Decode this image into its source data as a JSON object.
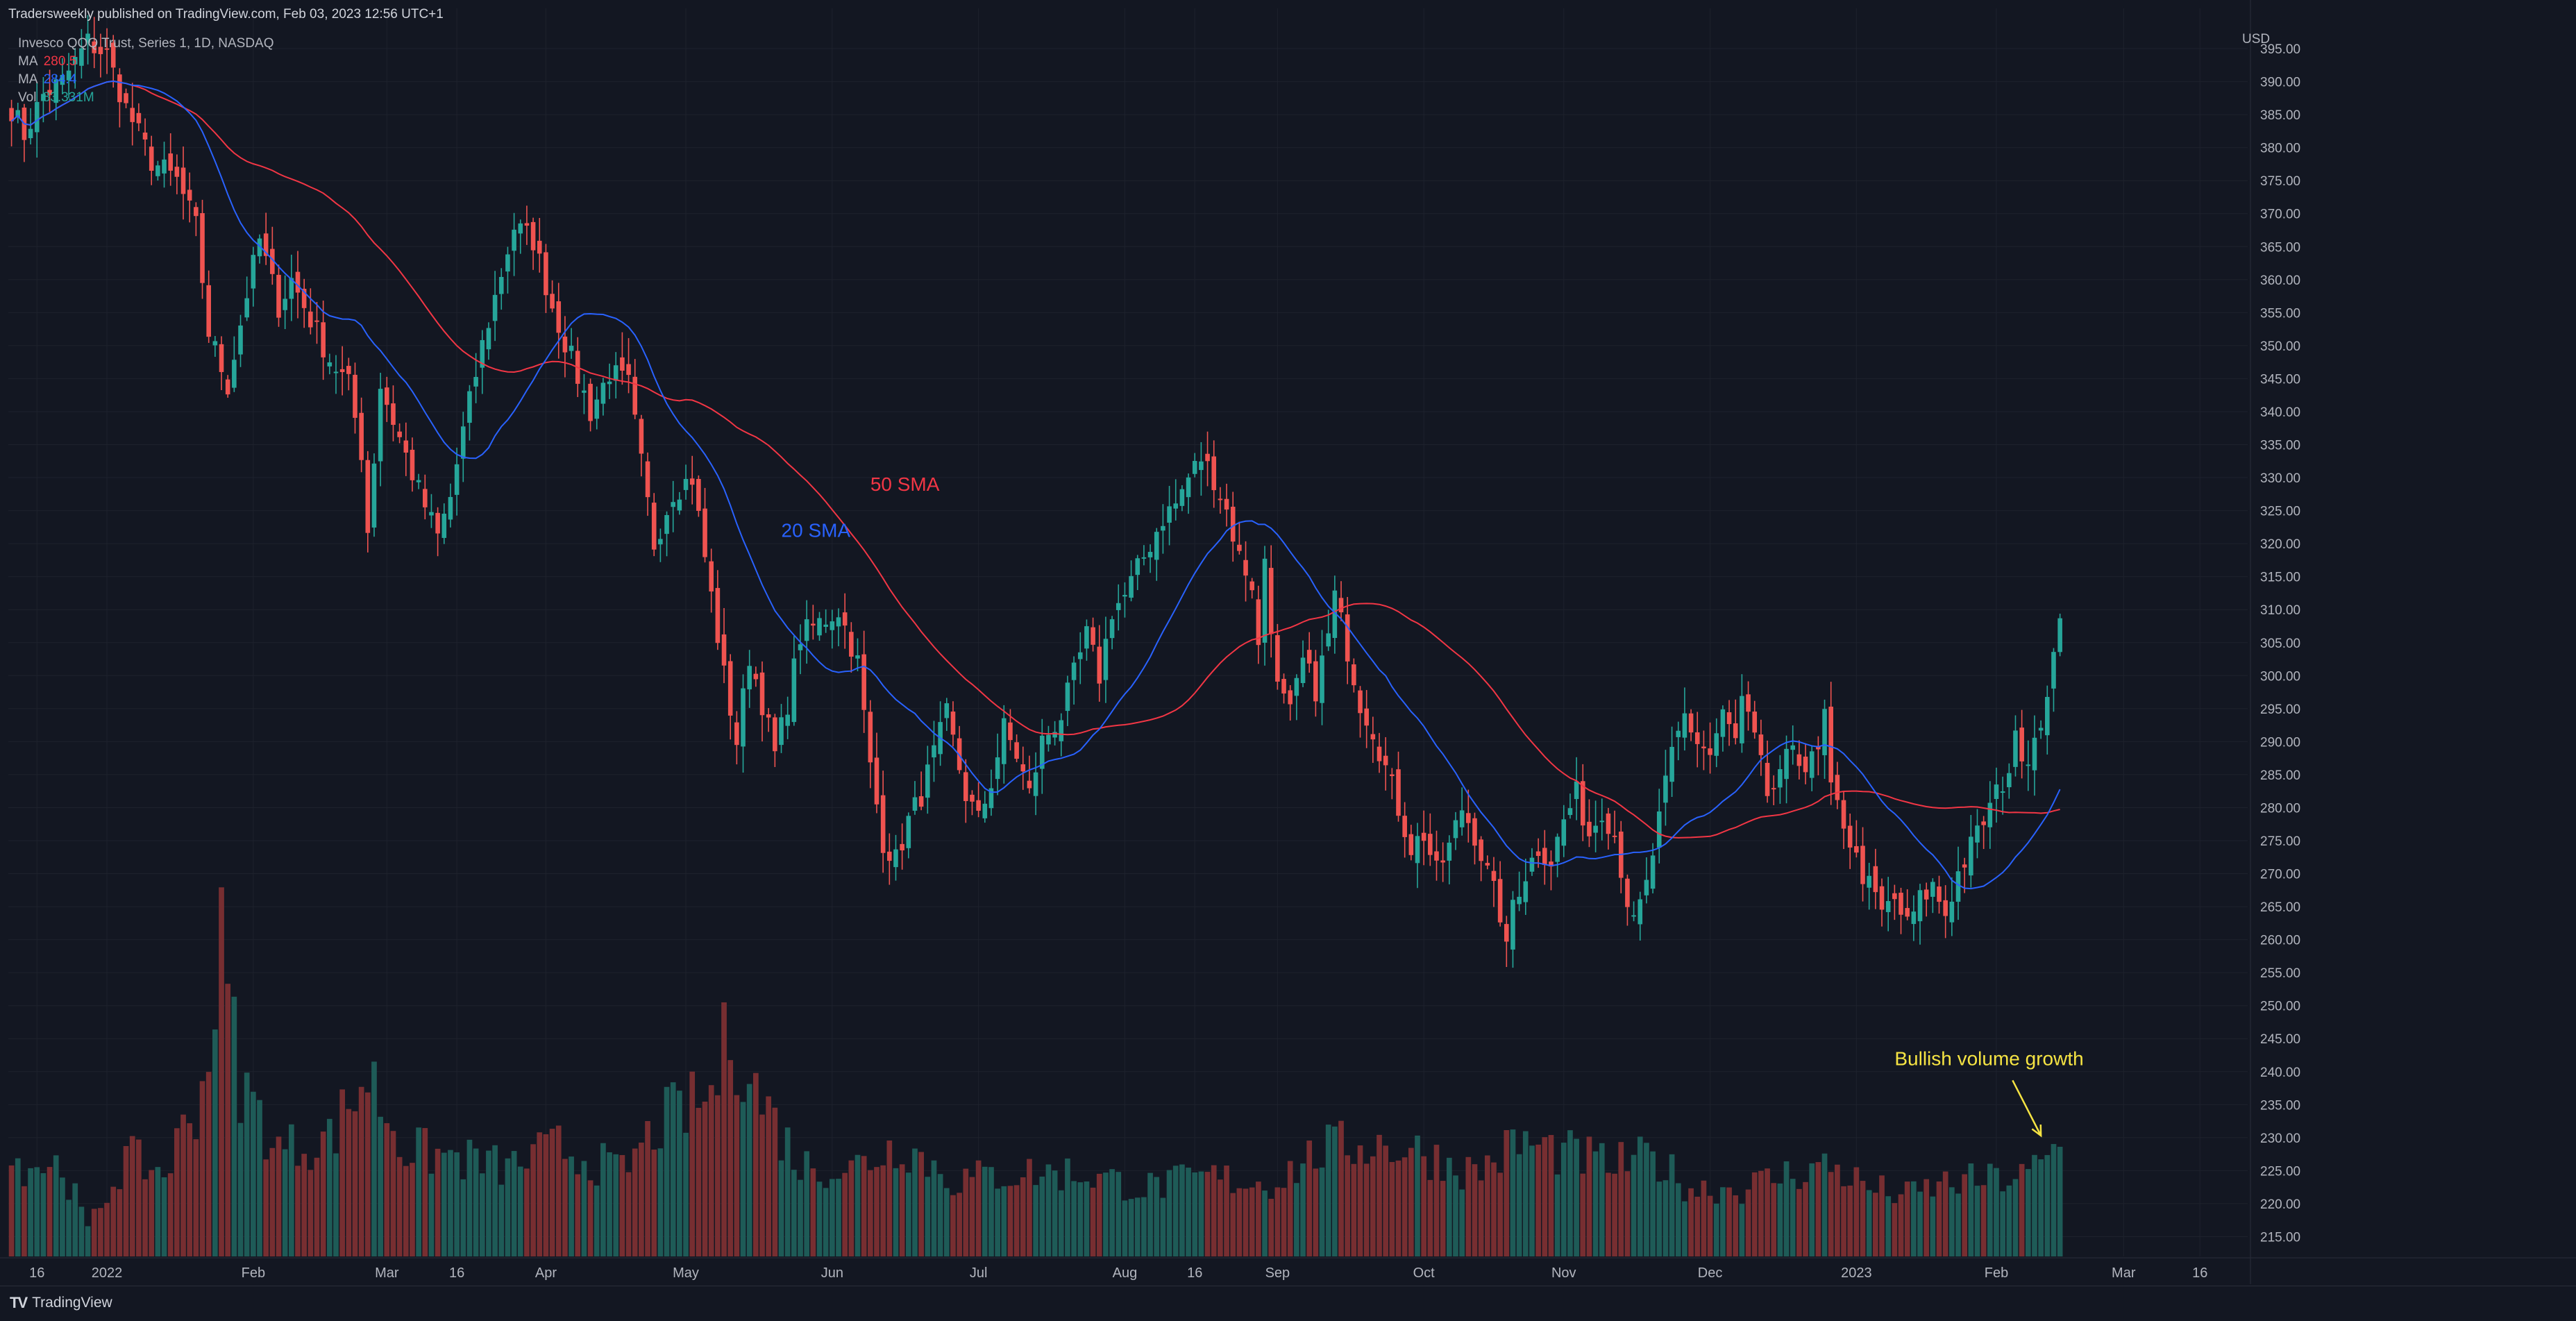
{
  "header": {
    "publisher": "Tradersweekly published on TradingView.com, Feb 03, 2023 12:56 UTC+1"
  },
  "legend": [
    {
      "label": "Invesco QQQ Trust, Series 1, 1D, NASDAQ",
      "value": "",
      "color": "#d1d4dc"
    },
    {
      "label": "MA",
      "value": "280.5",
      "color": "#f23645"
    },
    {
      "label": "MA",
      "value": "284.4",
      "color": "#2962ff"
    },
    {
      "label": "Vol",
      "value": "83.331M",
      "color": "#26a69a"
    }
  ],
  "brand": {
    "name": "TradingView",
    "logo_text": "TV"
  },
  "colors": {
    "background": "#131722",
    "grid": "#1e222d",
    "up": "#26a69a",
    "down": "#ef5350",
    "ma20": "#2962ff",
    "ma50": "#f23645",
    "annotation_yellow": "#f6e443",
    "axis_text": "#b2b5be"
  },
  "chart_data": {
    "type": "candlestick",
    "y_axis": {
      "currency": "USD",
      "range": [
        212,
        399
      ],
      "ticks": [
        "395.00",
        "390.00",
        "385.00",
        "380.00",
        "375.00",
        "370.00",
        "365.00",
        "360.00",
        "355.00",
        "350.00",
        "345.00",
        "340.00",
        "335.00",
        "330.00",
        "325.00",
        "320.00",
        "315.00",
        "310.00",
        "305.00",
        "300.00",
        "295.00",
        "290.00",
        "285.00",
        "280.00",
        "275.00",
        "270.00",
        "265.00",
        "260.00",
        "255.00",
        "250.00",
        "245.00",
        "240.00",
        "235.00",
        "230.00",
        "225.00",
        "220.00",
        "215.00"
      ]
    },
    "x_axis": {
      "ticks": [
        {
          "label": "16",
          "bar": 4
        },
        {
          "label": "2022",
          "bar": 15
        },
        {
          "label": "Feb",
          "bar": 38
        },
        {
          "label": "Mar",
          "bar": 59
        },
        {
          "label": "16",
          "bar": 70
        },
        {
          "label": "Apr",
          "bar": 84
        },
        {
          "label": "May",
          "bar": 106
        },
        {
          "label": "Jun",
          "bar": 129
        },
        {
          "label": "Jul",
          "bar": 152
        },
        {
          "label": "Aug",
          "bar": 175
        },
        {
          "label": "16",
          "bar": 186
        },
        {
          "label": "Sep",
          "bar": 199
        },
        {
          "label": "Oct",
          "bar": 222
        },
        {
          "label": "Nov",
          "bar": 244
        },
        {
          "label": "Dec",
          "bar": 267
        },
        {
          "label": "2023",
          "bar": 290
        },
        {
          "label": "Feb",
          "bar": 312
        },
        {
          "label": "Mar",
          "bar": 332
        },
        {
          "label": "16",
          "bar": 344
        }
      ]
    },
    "annotations": [
      {
        "text": "50 SMA",
        "bar": 135,
        "price": 328,
        "color": "#f23645"
      },
      {
        "text": "20 SMA",
        "bar": 121,
        "price": 321,
        "color": "#2962ff"
      },
      {
        "text": "Bullish volume growth",
        "bar": 296,
        "price": 241,
        "color": "#f6e443"
      }
    ],
    "keyframes": [
      {
        "bar": 0,
        "price": 386
      },
      {
        "bar": 2,
        "price": 382
      },
      {
        "bar": 5,
        "price": 388
      },
      {
        "bar": 8,
        "price": 390
      },
      {
        "bar": 12,
        "price": 396
      },
      {
        "bar": 15,
        "price": 394
      },
      {
        "bar": 18,
        "price": 386
      },
      {
        "bar": 22,
        "price": 378
      },
      {
        "bar": 26,
        "price": 375
      },
      {
        "bar": 29,
        "price": 368
      },
      {
        "bar": 31,
        "price": 352
      },
      {
        "bar": 34,
        "price": 344
      },
      {
        "bar": 37,
        "price": 358
      },
      {
        "bar": 39,
        "price": 366
      },
      {
        "bar": 42,
        "price": 356
      },
      {
        "bar": 44,
        "price": 360
      },
      {
        "bar": 47,
        "price": 354
      },
      {
        "bar": 50,
        "price": 348
      },
      {
        "bar": 53,
        "price": 344
      },
      {
        "bar": 55,
        "price": 334
      },
      {
        "bar": 56,
        "price": 322
      },
      {
        "bar": 58,
        "price": 344
      },
      {
        "bar": 61,
        "price": 336
      },
      {
        "bar": 64,
        "price": 328
      },
      {
        "bar": 67,
        "price": 321
      },
      {
        "bar": 69,
        "price": 327
      },
      {
        "bar": 71,
        "price": 337
      },
      {
        "bar": 74,
        "price": 350
      },
      {
        "bar": 77,
        "price": 361
      },
      {
        "bar": 79,
        "price": 368
      },
      {
        "bar": 82,
        "price": 366
      },
      {
        "bar": 85,
        "price": 356
      },
      {
        "bar": 88,
        "price": 348
      },
      {
        "bar": 91,
        "price": 340
      },
      {
        "bar": 94,
        "price": 346
      },
      {
        "bar": 97,
        "price": 344
      },
      {
        "bar": 99,
        "price": 332
      },
      {
        "bar": 101,
        "price": 320
      },
      {
        "bar": 104,
        "price": 328
      },
      {
        "bar": 107,
        "price": 330
      },
      {
        "bar": 109,
        "price": 318
      },
      {
        "bar": 112,
        "price": 300
      },
      {
        "bar": 114,
        "price": 290
      },
      {
        "bar": 116,
        "price": 303
      },
      {
        "bar": 118,
        "price": 296
      },
      {
        "bar": 120,
        "price": 288
      },
      {
        "bar": 122,
        "price": 296
      },
      {
        "bar": 124,
        "price": 306
      },
      {
        "bar": 127,
        "price": 308
      },
      {
        "bar": 130,
        "price": 310
      },
      {
        "bar": 133,
        "price": 302
      },
      {
        "bar": 135,
        "price": 286
      },
      {
        "bar": 137,
        "price": 275
      },
      {
        "bar": 139,
        "price": 272
      },
      {
        "bar": 141,
        "price": 278
      },
      {
        "bar": 143,
        "price": 282
      },
      {
        "bar": 145,
        "price": 288
      },
      {
        "bar": 147,
        "price": 294
      },
      {
        "bar": 150,
        "price": 282
      },
      {
        "bar": 152,
        "price": 278
      },
      {
        "bar": 154,
        "price": 284
      },
      {
        "bar": 156,
        "price": 292
      },
      {
        "bar": 158,
        "price": 288
      },
      {
        "bar": 160,
        "price": 282
      },
      {
        "bar": 162,
        "price": 290
      },
      {
        "bar": 165,
        "price": 294
      },
      {
        "bar": 167,
        "price": 300
      },
      {
        "bar": 169,
        "price": 306
      },
      {
        "bar": 171,
        "price": 300
      },
      {
        "bar": 173,
        "price": 310
      },
      {
        "bar": 175,
        "price": 312
      },
      {
        "bar": 177,
        "price": 316
      },
      {
        "bar": 179,
        "price": 320
      },
      {
        "bar": 181,
        "price": 324
      },
      {
        "bar": 183,
        "price": 326
      },
      {
        "bar": 185,
        "price": 330
      },
      {
        "bar": 187,
        "price": 333
      },
      {
        "bar": 189,
        "price": 330
      },
      {
        "bar": 191,
        "price": 325
      },
      {
        "bar": 193,
        "price": 318
      },
      {
        "bar": 195,
        "price": 314
      },
      {
        "bar": 196,
        "price": 304
      },
      {
        "bar": 197,
        "price": 318
      },
      {
        "bar": 199,
        "price": 298
      },
      {
        "bar": 201,
        "price": 294
      },
      {
        "bar": 203,
        "price": 302
      },
      {
        "bar": 205,
        "price": 298
      },
      {
        "bar": 207,
        "price": 306
      },
      {
        "bar": 208,
        "price": 312
      },
      {
        "bar": 210,
        "price": 304
      },
      {
        "bar": 212,
        "price": 296
      },
      {
        "bar": 214,
        "price": 292
      },
      {
        "bar": 216,
        "price": 286
      },
      {
        "bar": 218,
        "price": 280
      },
      {
        "bar": 220,
        "price": 274
      },
      {
        "bar": 222,
        "price": 276
      },
      {
        "bar": 224,
        "price": 270
      },
      {
        "bar": 226,
        "price": 274
      },
      {
        "bar": 228,
        "price": 280
      },
      {
        "bar": 230,
        "price": 276
      },
      {
        "bar": 232,
        "price": 270
      },
      {
        "bar": 234,
        "price": 264
      },
      {
        "bar": 235,
        "price": 258
      },
      {
        "bar": 236,
        "price": 266
      },
      {
        "bar": 238,
        "price": 270
      },
      {
        "bar": 240,
        "price": 274
      },
      {
        "bar": 242,
        "price": 272
      },
      {
        "bar": 244,
        "price": 278
      },
      {
        "bar": 246,
        "price": 282
      },
      {
        "bar": 248,
        "price": 276
      },
      {
        "bar": 250,
        "price": 280
      },
      {
        "bar": 252,
        "price": 276
      },
      {
        "bar": 254,
        "price": 266
      },
      {
        "bar": 255,
        "price": 262
      },
      {
        "bar": 257,
        "price": 268
      },
      {
        "bar": 259,
        "price": 278
      },
      {
        "bar": 261,
        "price": 288
      },
      {
        "bar": 263,
        "price": 294
      },
      {
        "bar": 265,
        "price": 290
      },
      {
        "bar": 267,
        "price": 288
      },
      {
        "bar": 269,
        "price": 294
      },
      {
        "bar": 271,
        "price": 290
      },
      {
        "bar": 272,
        "price": 296
      },
      {
        "bar": 274,
        "price": 290
      },
      {
        "bar": 276,
        "price": 282
      },
      {
        "bar": 278,
        "price": 284
      },
      {
        "bar": 280,
        "price": 290
      },
      {
        "bar": 282,
        "price": 286
      },
      {
        "bar": 284,
        "price": 288
      },
      {
        "bar": 285,
        "price": 294
      },
      {
        "bar": 286,
        "price": 282
      },
      {
        "bar": 288,
        "price": 278
      },
      {
        "bar": 290,
        "price": 272
      },
      {
        "bar": 292,
        "price": 268
      },
      {
        "bar": 294,
        "price": 264
      },
      {
        "bar": 296,
        "price": 266
      },
      {
        "bar": 298,
        "price": 262
      },
      {
        "bar": 300,
        "price": 266
      },
      {
        "bar": 302,
        "price": 268
      },
      {
        "bar": 304,
        "price": 264
      },
      {
        "bar": 306,
        "price": 270
      },
      {
        "bar": 308,
        "price": 274
      },
      {
        "bar": 310,
        "price": 278
      },
      {
        "bar": 312,
        "price": 282
      },
      {
        "bar": 314,
        "price": 286
      },
      {
        "bar": 315,
        "price": 290
      },
      {
        "bar": 317,
        "price": 288
      },
      {
        "bar": 319,
        "price": 294
      },
      {
        "bar": 320,
        "price": 296
      },
      {
        "bar": 321,
        "price": 302
      },
      {
        "bar": 322,
        "price": 310
      }
    ],
    "volume_keyframes": [
      {
        "bar": 0,
        "volume": 62
      },
      {
        "bar": 8,
        "volume": 60
      },
      {
        "bar": 12,
        "volume": 18
      },
      {
        "bar": 18,
        "volume": 65
      },
      {
        "bar": 24,
        "volume": 55
      },
      {
        "bar": 30,
        "volume": 110
      },
      {
        "bar": 33,
        "volume": 200
      },
      {
        "bar": 36,
        "volume": 115
      },
      {
        "bar": 42,
        "volume": 70
      },
      {
        "bar": 50,
        "volume": 78
      },
      {
        "bar": 56,
        "volume": 120
      },
      {
        "bar": 62,
        "volume": 70
      },
      {
        "bar": 70,
        "volume": 65
      },
      {
        "bar": 78,
        "volume": 58
      },
      {
        "bar": 86,
        "volume": 72
      },
      {
        "bar": 96,
        "volume": 55
      },
      {
        "bar": 102,
        "volume": 88
      },
      {
        "bar": 110,
        "volume": 105
      },
      {
        "bar": 113,
        "volume": 150
      },
      {
        "bar": 117,
        "volume": 110
      },
      {
        "bar": 124,
        "volume": 60
      },
      {
        "bar": 132,
        "volume": 58
      },
      {
        "bar": 140,
        "volume": 75
      },
      {
        "bar": 148,
        "volume": 50
      },
      {
        "bar": 158,
        "volume": 55
      },
      {
        "bar": 168,
        "volume": 55
      },
      {
        "bar": 178,
        "volume": 45
      },
      {
        "bar": 188,
        "volume": 52
      },
      {
        "bar": 198,
        "volume": 48
      },
      {
        "bar": 206,
        "volume": 70
      },
      {
        "bar": 214,
        "volume": 75
      },
      {
        "bar": 222,
        "volume": 68
      },
      {
        "bar": 230,
        "volume": 55
      },
      {
        "bar": 237,
        "volume": 75
      },
      {
        "bar": 244,
        "volume": 68
      },
      {
        "bar": 252,
        "volume": 60
      },
      {
        "bar": 258,
        "volume": 65
      },
      {
        "bar": 264,
        "volume": 45
      },
      {
        "bar": 272,
        "volume": 45
      },
      {
        "bar": 280,
        "volume": 55
      },
      {
        "bar": 286,
        "volume": 60
      },
      {
        "bar": 292,
        "volume": 45
      },
      {
        "bar": 298,
        "volume": 40
      },
      {
        "bar": 304,
        "volume": 48
      },
      {
        "bar": 310,
        "volume": 50
      },
      {
        "bar": 316,
        "volume": 52
      },
      {
        "bar": 320,
        "volume": 62
      },
      {
        "bar": 322,
        "volume": 78
      }
    ],
    "volume_max": 210
  }
}
